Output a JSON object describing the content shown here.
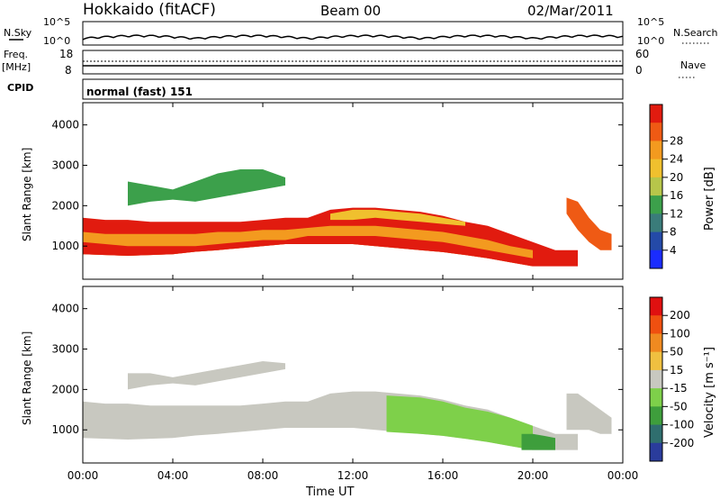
{
  "header": {
    "title": "Hokkaido (fitACF)",
    "beam": "Beam 00",
    "date": "02/Mar/2011"
  },
  "strips": {
    "nsky_label": "N.Sky",
    "nsky_ticks": [
      "10^5",
      "10^0"
    ],
    "nsearch_label": "N.Search",
    "nsearch_ticks": [
      "10^5",
      "10^0"
    ],
    "freq_label_top": "Freq.",
    "freq_label_unit": "[MHz]",
    "freq_ticks": [
      "18",
      "8"
    ],
    "nave_label": "Nave",
    "nave_ticks": [
      "60",
      "0"
    ],
    "cpid_label": "CPID",
    "cpid_text": "normal (fast) 151"
  },
  "axes": {
    "xlabel": "Time UT",
    "ylabel_top": "Slant Range [km]",
    "ylabel_bottom": "Slant Range [km]",
    "x_ticks": [
      "00:00",
      "04:00",
      "08:00",
      "12:00",
      "16:00",
      "20:00",
      "00:00"
    ],
    "y_ticks": [
      "1000",
      "2000",
      "3000",
      "4000"
    ]
  },
  "power_scale": {
    "title": "Power [dB]",
    "ticks": [
      "4",
      "8",
      "12",
      "16",
      "20",
      "24",
      "28"
    ],
    "colors": [
      "#1a2cff",
      "#244aa8",
      "#3a7c7a",
      "#3ca04b",
      "#b7c64a",
      "#f0c02e",
      "#f39a1f",
      "#ef5a14",
      "#e11b0f"
    ]
  },
  "velocity_scale": {
    "title": "Velocity [m s⁻¹]",
    "ticks": [
      "200",
      "100",
      "50",
      "15",
      "-15",
      "-50",
      "-100",
      "-200"
    ],
    "colors": [
      "#2a3c9c",
      "#2f6e6e",
      "#3e9e3c",
      "#7ed04a",
      "#c8c8c0",
      "#f0c040",
      "#f08a20",
      "#f05010",
      "#e01010"
    ]
  },
  "chart_data": [
    {
      "type": "heatmap",
      "title": "Power [dB]",
      "ylabel": "Slant Range [km]",
      "xlabel": "Time UT",
      "x_range_hours": [
        0,
        24
      ],
      "y_range_km": [
        180,
        4550
      ],
      "layers": [
        {
          "x": [
            0,
            1,
            2,
            3,
            4,
            5,
            6,
            7,
            8,
            9,
            10,
            11,
            12,
            13,
            14,
            15,
            16,
            17,
            18,
            19,
            20,
            21,
            22
          ],
          "lo": [
            800,
            780,
            760,
            780,
            800,
            860,
            900,
            950,
            1000,
            1050,
            1050,
            1050,
            1050,
            1000,
            950,
            900,
            850,
            780,
            700,
            600,
            500,
            500,
            500
          ],
          "hi": [
            1700,
            1650,
            1650,
            1600,
            1600,
            1600,
            1600,
            1600,
            1650,
            1700,
            1700,
            1900,
            1950,
            1950,
            1900,
            1850,
            1750,
            1600,
            1500,
            1300,
            1100,
            900,
            900
          ],
          "level": 8
        },
        {
          "x": [
            0,
            1,
            2,
            3,
            4,
            5,
            6,
            7,
            8,
            9,
            10,
            11,
            12,
            13,
            14,
            15,
            16,
            17,
            18,
            19,
            20
          ],
          "lo": [
            800,
            780,
            760,
            780,
            800,
            860,
            900,
            950,
            1000,
            1050,
            1050,
            1050,
            1050,
            1000,
            950,
            900,
            850,
            780,
            700,
            600,
            500
          ],
          "hi": [
            1350,
            1300,
            1300,
            1300,
            1300,
            1300,
            1350,
            1350,
            1400,
            1400,
            1450,
            1500,
            1500,
            1500,
            1450,
            1400,
            1350,
            1250,
            1150,
            1000,
            900
          ],
          "level": 6
        },
        {
          "x": [
            0,
            1,
            2,
            3,
            4,
            5,
            6,
            7,
            8,
            9,
            10,
            11,
            12,
            13,
            14,
            15,
            16,
            17,
            18,
            19,
            20
          ],
          "lo": [
            800,
            780,
            760,
            780,
            800,
            860,
            900,
            950,
            1000,
            1050,
            1050,
            1050,
            1050,
            1000,
            950,
            900,
            850,
            780,
            700,
            600,
            500
          ],
          "hi": [
            1100,
            1050,
            1000,
            1000,
            1000,
            1000,
            1050,
            1100,
            1150,
            1150,
            1250,
            1250,
            1250,
            1250,
            1200,
            1150,
            1100,
            1000,
            900,
            800,
            700
          ],
          "level": 8
        },
        {
          "x": [
            21.5,
            22,
            22.5,
            23,
            23.5
          ],
          "lo": [
            1800,
            1400,
            1100,
            900,
            900
          ],
          "hi": [
            2200,
            2100,
            1700,
            1400,
            1300
          ],
          "level": 7
        },
        {
          "x": [
            2,
            3,
            4,
            5,
            6,
            7,
            8,
            9
          ],
          "lo": [
            2000,
            2100,
            2150,
            2100,
            2200,
            2300,
            2400,
            2500
          ],
          "hi": [
            2600,
            2500,
            2400,
            2600,
            2800,
            2900,
            2900,
            2700
          ],
          "level": 3
        },
        {
          "x": [
            11,
            12,
            13,
            14,
            15,
            16,
            17
          ],
          "lo": [
            1650,
            1650,
            1700,
            1650,
            1600,
            1550,
            1500
          ],
          "hi": [
            1800,
            1900,
            1900,
            1850,
            1800,
            1700,
            1600
          ],
          "level": 5
        }
      ]
    },
    {
      "type": "heatmap",
      "title": "Velocity [m s⁻¹]",
      "ylabel": "Slant Range [km]",
      "xlabel": "Time UT",
      "x_range_hours": [
        0,
        24
      ],
      "y_range_km": [
        180,
        4550
      ],
      "layers": [
        {
          "x": [
            0,
            1,
            2,
            3,
            4,
            5,
            6,
            7,
            8,
            9,
            10,
            11,
            12,
            13,
            14,
            15,
            16,
            17,
            18,
            19,
            20,
            21,
            22
          ],
          "lo": [
            800,
            780,
            760,
            780,
            800,
            860,
            900,
            950,
            1000,
            1050,
            1050,
            1050,
            1050,
            1000,
            950,
            900,
            850,
            780,
            700,
            600,
            500,
            500,
            500
          ],
          "hi": [
            1700,
            1650,
            1650,
            1600,
            1600,
            1600,
            1600,
            1600,
            1650,
            1700,
            1700,
            1900,
            1950,
            1950,
            1900,
            1850,
            1750,
            1600,
            1500,
            1300,
            1100,
            900,
            900
          ],
          "level": 4
        },
        {
          "x": [
            13.5,
            15,
            16,
            17,
            18,
            19,
            20
          ],
          "lo": [
            950,
            900,
            850,
            780,
            700,
            600,
            500
          ],
          "hi": [
            1850,
            1800,
            1700,
            1550,
            1450,
            1300,
            1100
          ],
          "level": 3
        },
        {
          "x": [
            19.5,
            20,
            20.5,
            21
          ],
          "lo": [
            500,
            500,
            500,
            500
          ],
          "hi": [
            900,
            900,
            850,
            800
          ],
          "level": 2
        },
        {
          "x": [
            2,
            3,
            4,
            5,
            6,
            7,
            8,
            9
          ],
          "lo": [
            2000,
            2100,
            2150,
            2100,
            2200,
            2300,
            2400,
            2500
          ],
          "hi": [
            2400,
            2400,
            2300,
            2400,
            2500,
            2600,
            2700,
            2650
          ],
          "level": 4
        },
        {
          "x": [
            21.5,
            22,
            22.5,
            23,
            23.5
          ],
          "lo": [
            1000,
            1000,
            1000,
            900,
            900
          ],
          "hi": [
            1900,
            1900,
            1700,
            1500,
            1300
          ],
          "level": 4
        }
      ]
    }
  ]
}
